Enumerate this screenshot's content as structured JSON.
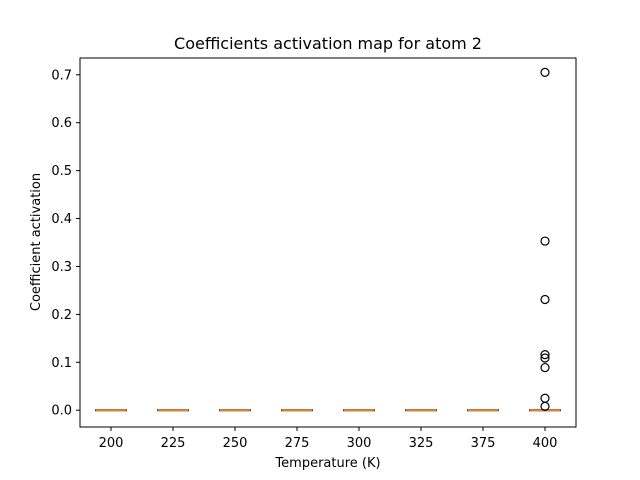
{
  "chart_data": {
    "type": "boxplot",
    "title": "Coefficients activation map for atom 2",
    "xlabel": "Temperature (K)",
    "ylabel": "Coefficient activation",
    "categories": [
      "200",
      "225",
      "250",
      "275",
      "300",
      "325",
      "375",
      "400"
    ],
    "ylim": [
      -0.035,
      0.735
    ],
    "yticks": [
      0.0,
      0.1,
      0.2,
      0.3,
      0.4,
      0.5,
      0.6,
      0.7
    ],
    "ytick_labels": [
      "0.0",
      "0.1",
      "0.2",
      "0.3",
      "0.4",
      "0.5",
      "0.6",
      "0.7"
    ],
    "grid": false,
    "boxes": [
      {
        "category": "200",
        "q1": 0,
        "median": 0,
        "q3": 0,
        "whisker_low": 0,
        "whisker_high": 0,
        "outliers": []
      },
      {
        "category": "225",
        "q1": 0,
        "median": 0,
        "q3": 0,
        "whisker_low": 0,
        "whisker_high": 0,
        "outliers": []
      },
      {
        "category": "250",
        "q1": 0,
        "median": 0,
        "q3": 0,
        "whisker_low": 0,
        "whisker_high": 0,
        "outliers": []
      },
      {
        "category": "275",
        "q1": 0,
        "median": 0,
        "q3": 0,
        "whisker_low": 0,
        "whisker_high": 0,
        "outliers": []
      },
      {
        "category": "300",
        "q1": 0,
        "median": 0,
        "q3": 0,
        "whisker_low": 0,
        "whisker_high": 0,
        "outliers": []
      },
      {
        "category": "325",
        "q1": 0,
        "median": 0,
        "q3": 0,
        "whisker_low": 0,
        "whisker_high": 0,
        "outliers": []
      },
      {
        "category": "375",
        "q1": 0,
        "median": 0,
        "q3": 0,
        "whisker_low": 0,
        "whisker_high": 0,
        "outliers": []
      },
      {
        "category": "400",
        "q1": 0,
        "median": 0,
        "q3": 0,
        "whisker_low": 0,
        "whisker_high": 0,
        "outliers": [
          0.705,
          0.353,
          0.231,
          0.116,
          0.109,
          0.089,
          0.025,
          0.008
        ]
      }
    ],
    "colors": {
      "box": "#000000",
      "median": "#ff7f0e",
      "outlier": "#000000"
    }
  }
}
